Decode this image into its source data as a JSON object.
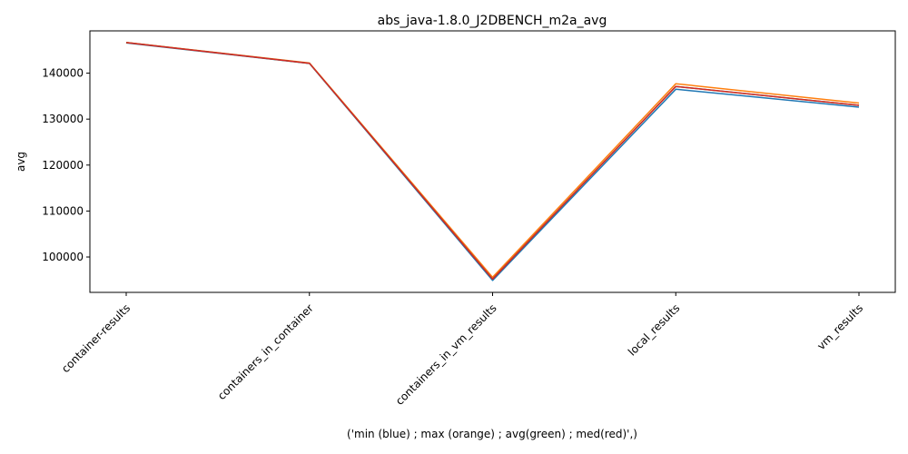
{
  "chart_data": {
    "type": "line",
    "title": "abs_java-1.8.0_J2DBENCH_m2a_avg",
    "xlabel": "('min (blue) ; max (orange) ; avg(green) ; med(red)',)",
    "ylabel": "avg",
    "categories": [
      "container-results",
      "containers_in_container",
      "containers_in_vm_results",
      "local_results",
      "vm_results"
    ],
    "ylim": [
      92300,
      149200
    ],
    "yticks": [
      100000,
      110000,
      120000,
      130000,
      140000
    ],
    "ytick_labels": [
      "100000",
      "110000",
      "120000",
      "130000",
      "140000"
    ],
    "grid": false,
    "series": [
      {
        "name": "min",
        "color": "#1f77b4",
        "values": [
          146600,
          142100,
          94900,
          136500,
          132600
        ]
      },
      {
        "name": "max",
        "color": "#ff7f0e",
        "values": [
          146700,
          142200,
          95600,
          137700,
          133500
        ]
      },
      {
        "name": "avg",
        "color": "#2ca02c",
        "values": [
          146650,
          142150,
          95200,
          137100,
          133000
        ]
      },
      {
        "name": "med",
        "color": "#d62728",
        "values": [
          146650,
          142150,
          95200,
          137100,
          133000
        ]
      }
    ]
  }
}
